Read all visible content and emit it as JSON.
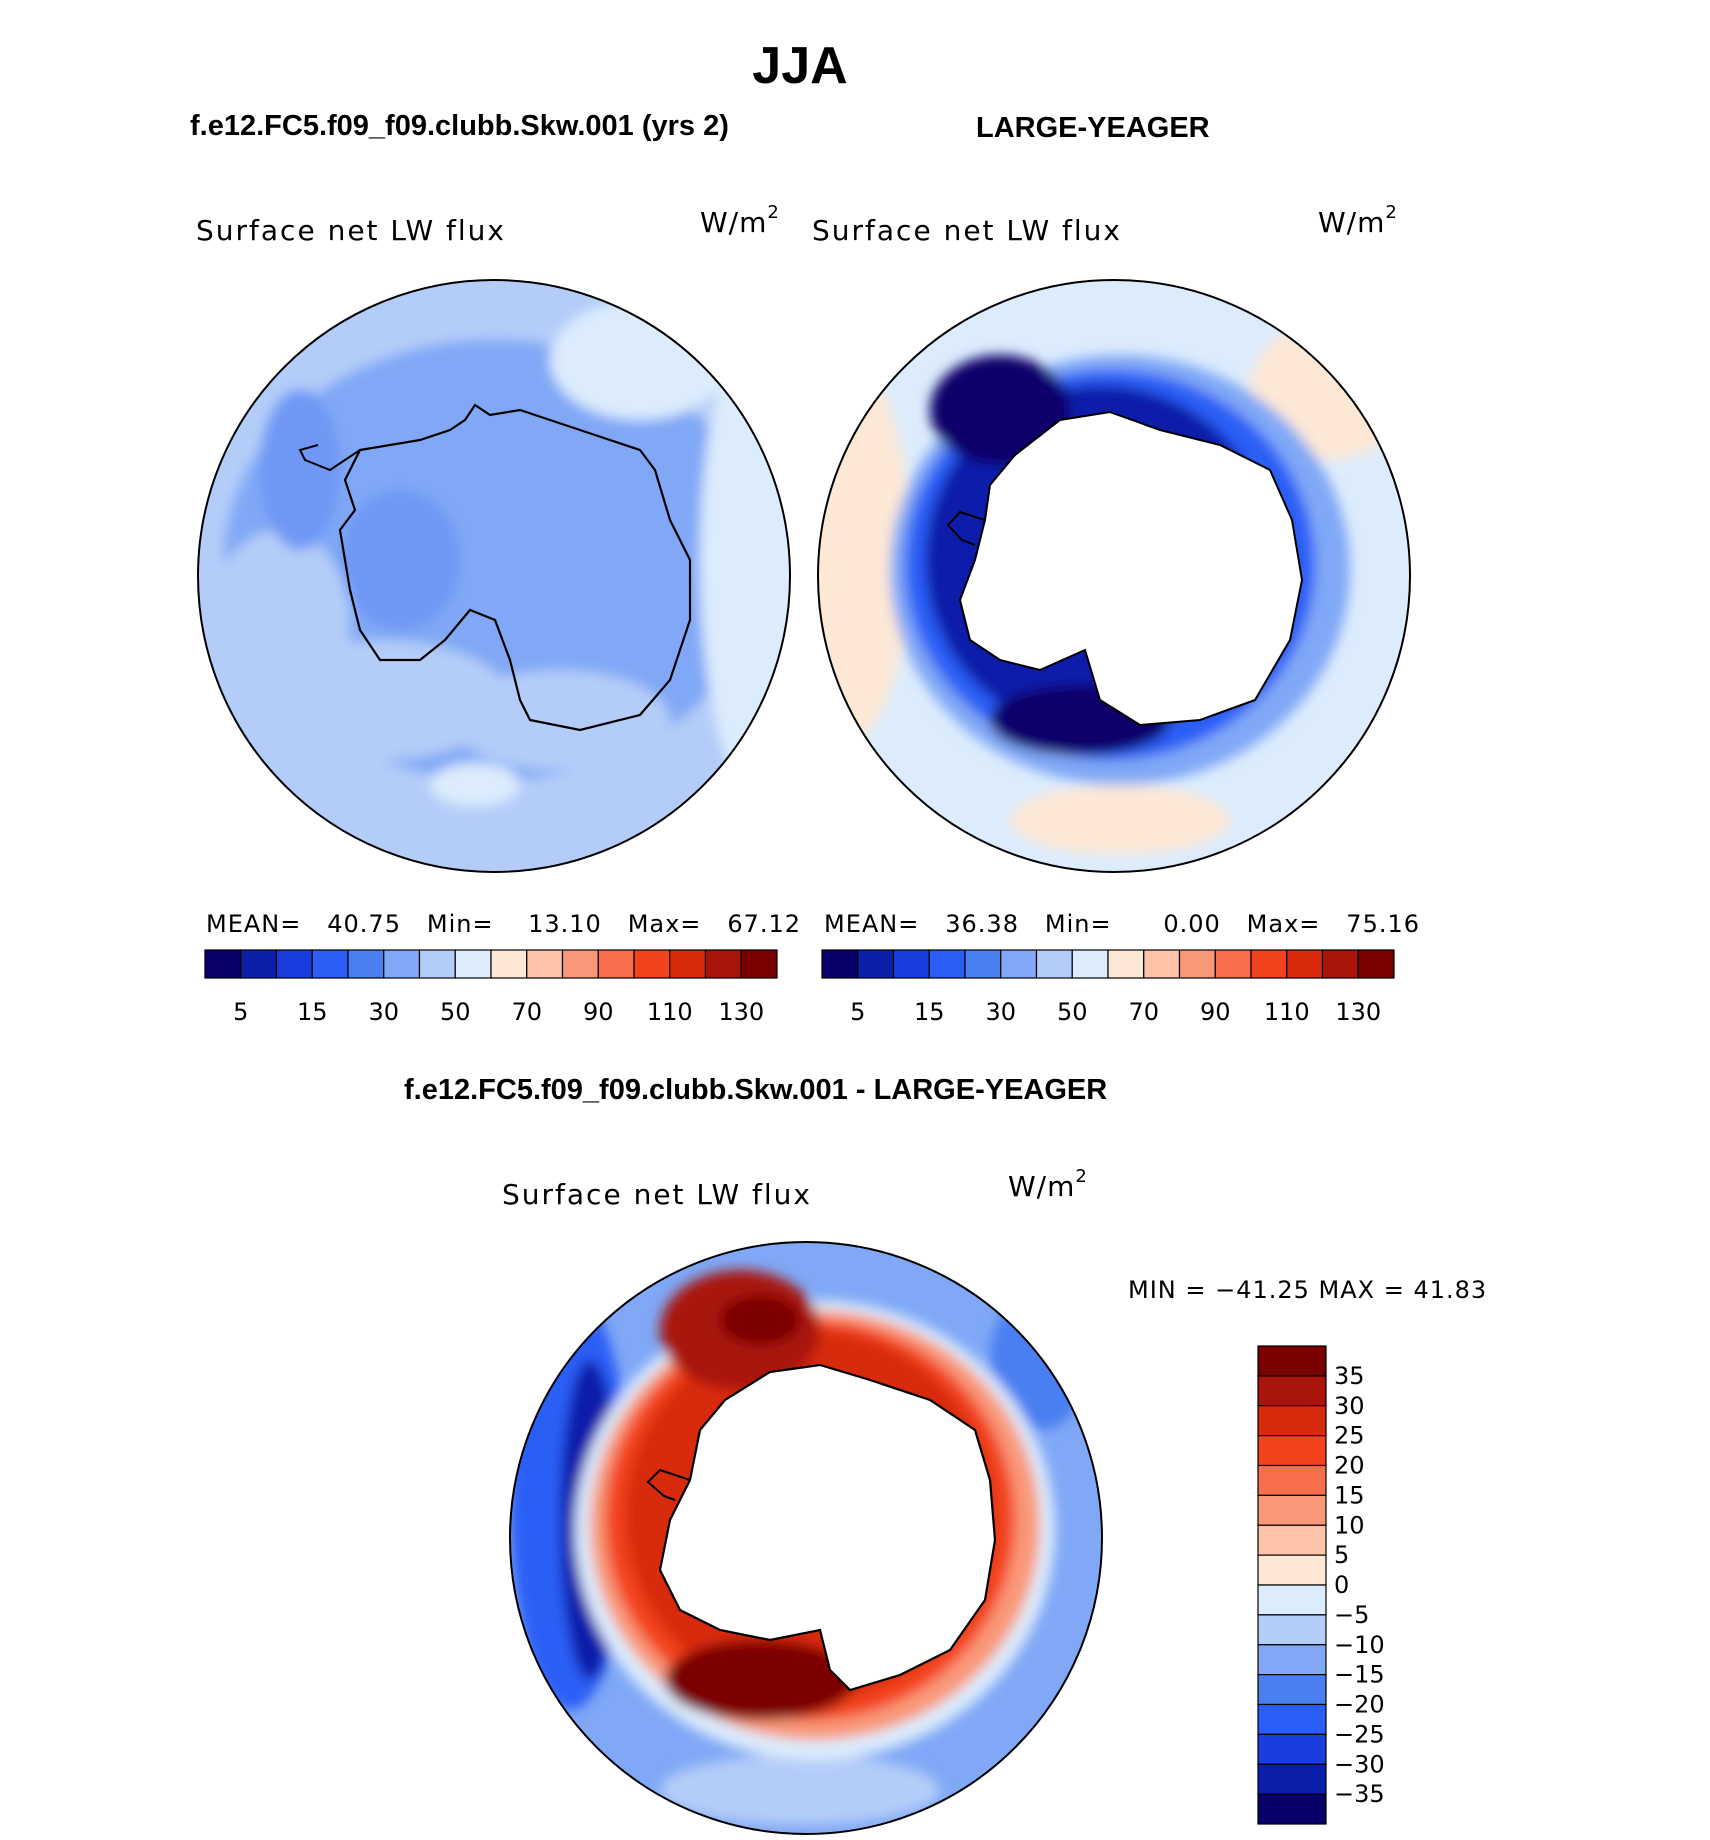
{
  "title": "JJA",
  "panels": [
    {
      "case_title": "f.e12.FC5.f09_f09.clubb.Skw.001 (yrs 2)",
      "variable": "Surface net LW flux",
      "units_base": "W/m",
      "units_exp": "2",
      "stats": {
        "mean_label": "MEAN=",
        "mean": "40.75",
        "min_label": "Min=",
        "min": "13.10",
        "max_label": "Max=",
        "max": "67.12"
      }
    },
    {
      "case_title": "LARGE-YEAGER",
      "variable": "Surface net LW flux",
      "units_base": "W/m",
      "units_exp": "2",
      "stats": {
        "mean_label": "MEAN=",
        "mean": "36.38",
        "min_label": "Min=",
        "min": "0.00",
        "max_label": "Max=",
        "max": "75.16"
      }
    }
  ],
  "diff_panel": {
    "case_title": "f.e12.FC5.f09_f09.clubb.Skw.001 - LARGE-YEAGER",
    "variable": "Surface net LW flux",
    "units_base": "W/m",
    "units_exp": "2",
    "minmax": "MIN = −41.25  MAX =   41.83"
  },
  "chart_data": [
    {
      "type": "heatmap",
      "title": "f.e12.FC5.f09_f09.clubb.Skw.001 (yrs 2)",
      "variable": "Surface net LW flux",
      "units": "W/m2",
      "projection": "south polar stereographic",
      "summary": {
        "mean": 40.75,
        "min": 13.1,
        "max": 67.12
      },
      "colorbar": {
        "orientation": "horizontal",
        "tick_labels": [
          "5",
          "15",
          "30",
          "50",
          "70",
          "90",
          "110",
          "130"
        ],
        "colors": [
          "#08006a",
          "#0a1faa",
          "#1a3de0",
          "#2a5ef6",
          "#4a7ff0",
          "#80a8f6",
          "#b4cdf8",
          "#dcecfd",
          "#fde8d6",
          "#fcc3a8",
          "#f99878",
          "#f86d4b",
          "#f3421e",
          "#d82a0c",
          "#a9150a",
          "#7b0000"
        ]
      }
    },
    {
      "type": "heatmap",
      "title": "LARGE-YEAGER",
      "variable": "Surface net LW flux",
      "units": "W/m2",
      "projection": "south polar stereographic",
      "summary": {
        "mean": 36.38,
        "min": 0.0,
        "max": 75.16
      },
      "colorbar": {
        "orientation": "horizontal",
        "tick_labels": [
          "5",
          "15",
          "30",
          "50",
          "70",
          "90",
          "110",
          "130"
        ],
        "colors": [
          "#08006a",
          "#0a1faa",
          "#1a3de0",
          "#2a5ef6",
          "#4a7ff0",
          "#80a8f6",
          "#b4cdf8",
          "#dcecfd",
          "#fde8d6",
          "#fcc3a8",
          "#f99878",
          "#f86d4b",
          "#f3421e",
          "#d82a0c",
          "#a9150a",
          "#7b0000"
        ]
      }
    },
    {
      "type": "heatmap",
      "title": "f.e12.FC5.f09_f09.clubb.Skw.001 - LARGE-YEAGER",
      "variable": "Surface net LW flux",
      "units": "W/m2",
      "projection": "south polar stereographic",
      "summary": {
        "min": -41.25,
        "max": 41.83
      },
      "colorbar": {
        "orientation": "vertical",
        "tick_labels": [
          "35",
          "30",
          "25",
          "20",
          "15",
          "10",
          "5",
          "0",
          "−5",
          "−10",
          "−15",
          "−20",
          "−25",
          "−30",
          "−35"
        ],
        "colors": [
          "#7b0000",
          "#a9150a",
          "#d82a0c",
          "#f3421e",
          "#f86d4b",
          "#f99878",
          "#fcc3a8",
          "#fde8d6",
          "#dcecfd",
          "#b4cdf8",
          "#80a8f6",
          "#4a7ff0",
          "#2a5ef6",
          "#1a3de0",
          "#0a1faa",
          "#08006a"
        ]
      }
    }
  ]
}
